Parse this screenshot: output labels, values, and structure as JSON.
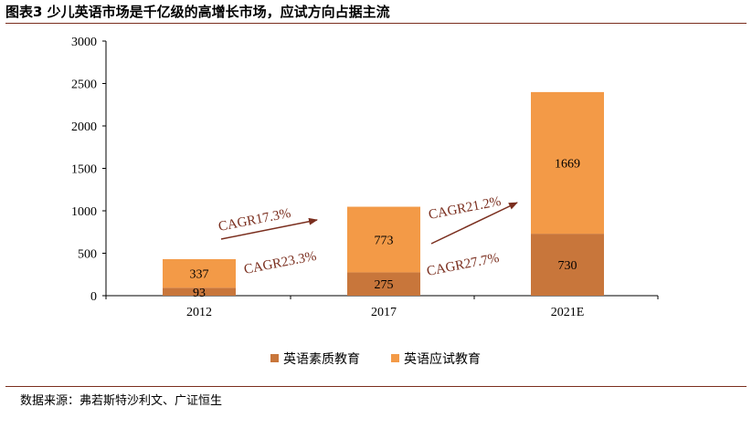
{
  "header": {
    "title": "图表3 少儿英语市场是千亿级的高增长市场，应试方向占据主流"
  },
  "footer": {
    "source": "数据来源：弗若斯特沙利文、广证恒生"
  },
  "colors": {
    "rule": "#7a2e1e",
    "quality": "#c8763b",
    "exam": "#f39a47",
    "cagr": "#7a2e1e",
    "axis": "#000000"
  },
  "chart_data": {
    "type": "bar",
    "stacked": true,
    "categories": [
      "2012",
      "2017",
      "2021E"
    ],
    "series": [
      {
        "name": "英语素质教育",
        "values": [
          93,
          275,
          730
        ],
        "color": "#c8763b"
      },
      {
        "name": "英语应试教育",
        "values": [
          337,
          773,
          1669
        ],
        "color": "#f39a47"
      }
    ],
    "ylim": [
      0,
      3000
    ],
    "yticks": [
      "0",
      "500",
      "1000",
      "1500",
      "2000",
      "2500",
      "3000"
    ],
    "legend_position": "bottom",
    "grid": false,
    "annotations": [
      {
        "text": "CAGR17.3%",
        "arrow": true
      },
      {
        "text": "CAGR23.3%",
        "arrow": false
      },
      {
        "text": "CAGR21.2%",
        "arrow": true
      },
      {
        "text": "CAGR27.7%",
        "arrow": false
      }
    ]
  }
}
